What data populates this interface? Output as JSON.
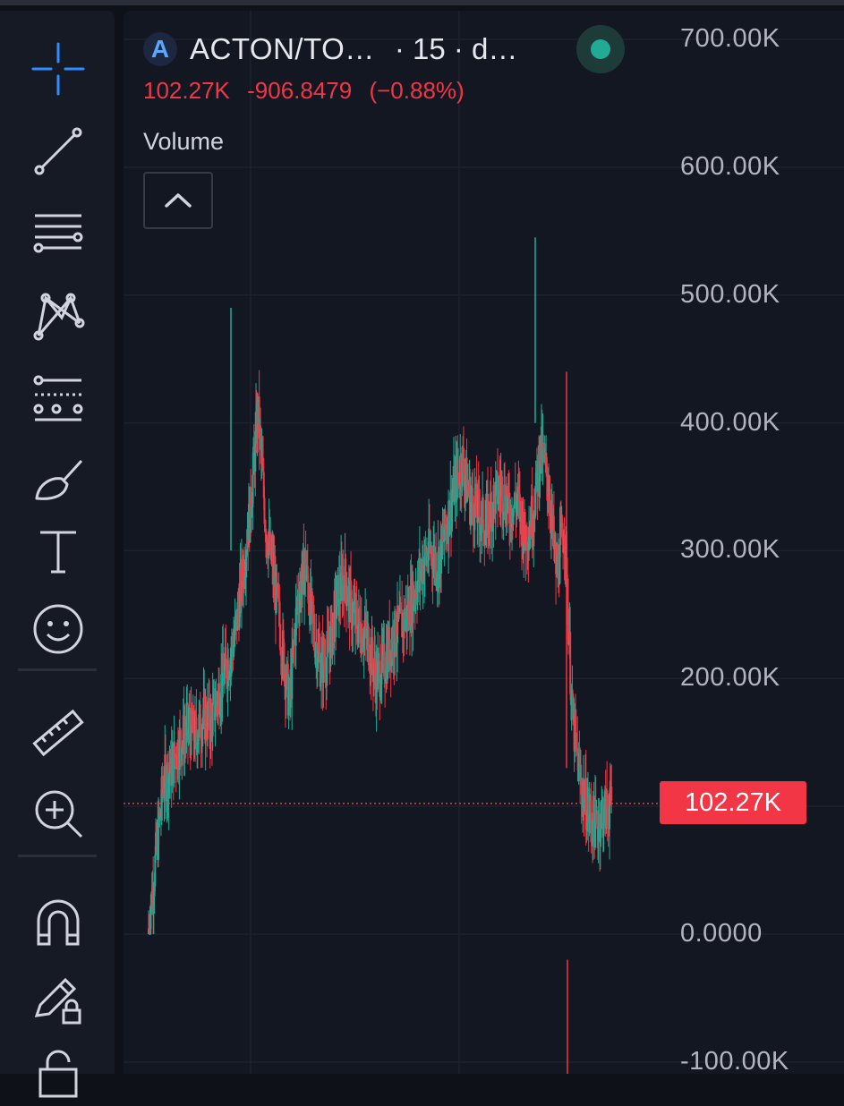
{
  "header": {
    "symbol_logo": "A",
    "symbol_title": "ACTON/TO…",
    "interval_text": "· 15 · d…",
    "status_color": "#22ab94"
  },
  "price_change": {
    "last": "102.27K",
    "change": "-906.8479",
    "change_percent": "(−0.88%)"
  },
  "indicator": {
    "label": "Volume"
  },
  "last_price_badge": "102.27K",
  "colors": {
    "up": "#22ab94",
    "down": "#f23645",
    "background": "#131722"
  },
  "toolbar": {
    "icons": [
      "crosshair-icon",
      "trend-line-icon",
      "horizontal-lines-icon",
      "pattern-icon",
      "fib-retracement-icon",
      "brush-icon",
      "text-icon",
      "emoji-icon",
      "ruler-icon",
      "zoom-in-icon",
      "magnet-icon",
      "lock-drawing-icon",
      "lock-icon"
    ]
  },
  "chart_data": {
    "type": "line",
    "y_axis_ticks": [
      "700.00K",
      "600.00K",
      "500.00K",
      "400.00K",
      "300.00K",
      "200.00K",
      "0.0000",
      "-100.00K"
    ],
    "ylim": [
      -100000,
      700000
    ],
    "last_value": 102270,
    "grid": true,
    "series": [
      {
        "values": [
          0,
          60000,
          120000,
          130000,
          150000,
          160000,
          155000,
          170000,
          165000,
          190000,
          210000,
          230000,
          280000,
          330000,
          410000,
          320000,
          280000,
          230000,
          180000,
          260000,
          290000,
          240000,
          210000,
          220000,
          260000,
          280000,
          250000,
          240000,
          230000,
          200000,
          210000,
          230000,
          240000,
          250000,
          270000,
          290000,
          300000,
          290000,
          320000,
          350000,
          370000,
          340000,
          330000,
          320000,
          340000,
          350000,
          330000,
          340000,
          310000,
          330000,
          380000,
          350000,
          280000,
          320000,
          170000,
          120000,
          95000,
          85000,
          95000,
          102270
        ]
      }
    ]
  }
}
